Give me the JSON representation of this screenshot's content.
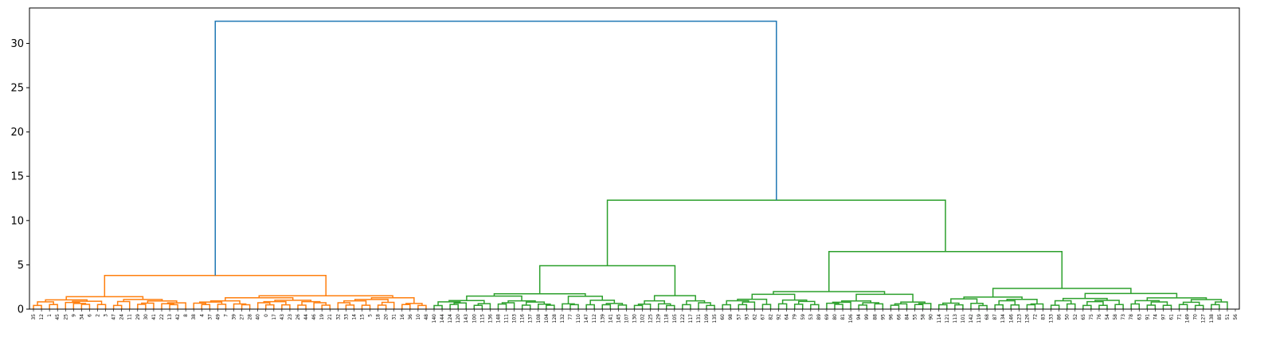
{
  "chart_data": {
    "type": "dendrogram",
    "title": "",
    "xlabel": "",
    "ylabel": "",
    "ylim": [
      0,
      34
    ],
    "y_ticks": [
      0,
      5,
      10,
      15,
      20,
      25,
      30
    ],
    "grid": false,
    "leaf_labels": [
      "35",
      "12",
      "1",
      "45",
      "25",
      "9",
      "34",
      "6",
      "2",
      "3",
      "47",
      "24",
      "11",
      "29",
      "30",
      "41",
      "22",
      "13",
      "42",
      "8",
      "38",
      "4",
      "37",
      "49",
      "7",
      "39",
      "27",
      "28",
      "40",
      "0",
      "17",
      "43",
      "23",
      "26",
      "44",
      "46",
      "19",
      "21",
      "32",
      "33",
      "14",
      "15",
      "5",
      "18",
      "20",
      "31",
      "16",
      "36",
      "10",
      "48",
      "140",
      "144",
      "124",
      "120",
      "143",
      "100",
      "115",
      "136",
      "148",
      "111",
      "103",
      "116",
      "137",
      "108",
      "104",
      "128",
      "132",
      "77",
      "110",
      "147",
      "112",
      "139",
      "141",
      "145",
      "107",
      "130",
      "102",
      "125",
      "129",
      "118",
      "105",
      "122",
      "117",
      "131",
      "109",
      "135",
      "60",
      "98",
      "57",
      "93",
      "62",
      "67",
      "82",
      "92",
      "64",
      "79",
      "59",
      "53",
      "89",
      "69",
      "80",
      "81",
      "106",
      "94",
      "99",
      "88",
      "95",
      "96",
      "66",
      "84",
      "55",
      "58",
      "90",
      "114",
      "121",
      "113",
      "101",
      "142",
      "119",
      "68",
      "87",
      "134",
      "146",
      "123",
      "126",
      "72",
      "83",
      "133",
      "86",
      "50",
      "52",
      "65",
      "75",
      "76",
      "54",
      "58",
      "73",
      "78",
      "63",
      "91",
      "74",
      "97",
      "61",
      "71",
      "149",
      "70",
      "127",
      "138",
      "85",
      "51",
      "56"
    ],
    "clusters": [
      {
        "color": "#ff7f0e",
        "leaf_range": [
          0,
          49
        ],
        "height": 3.8
      },
      {
        "color": "#2ca02c",
        "leaf_range": [
          50,
          149
        ],
        "height": 12.3
      }
    ],
    "link_color_above_threshold": "#1f77b4",
    "merges": [
      {
        "height": 32.5,
        "color": "#1f77b4",
        "between": [
          "cluster 0-49",
          "cluster 50-149"
        ]
      },
      {
        "height": 12.3,
        "color": "#2ca02c",
        "between": [
          "leaves 50-85",
          "leaves 86-149"
        ]
      },
      {
        "height": 6.5,
        "color": "#2ca02c",
        "between": [
          "leaves 86-112",
          "leaves 113-149"
        ]
      },
      {
        "height": 4.9,
        "color": "#2ca02c",
        "between": [
          "leaves 50-74",
          "leaves 75-85"
        ]
      },
      {
        "height": 3.8,
        "color": "#ff7f0e",
        "between": [
          "leaves 0-19",
          "leaves 20-49"
        ]
      }
    ]
  }
}
